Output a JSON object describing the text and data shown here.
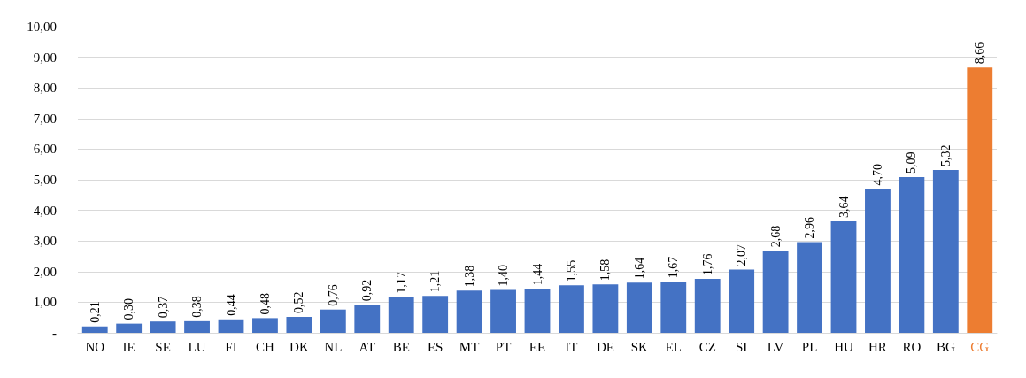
{
  "chart_data": {
    "type": "bar",
    "categories": [
      "NO",
      "IE",
      "SE",
      "LU",
      "FI",
      "CH",
      "DK",
      "NL",
      "AT",
      "BE",
      "ES",
      "MT",
      "PT",
      "EE",
      "IT",
      "DE",
      "SK",
      "EL",
      "CZ",
      "SI",
      "LV",
      "PL",
      "HU",
      "HR",
      "RO",
      "BG",
      "CG"
    ],
    "values": [
      0.21,
      0.3,
      0.37,
      0.38,
      0.44,
      0.48,
      0.52,
      0.76,
      0.92,
      1.17,
      1.21,
      1.38,
      1.4,
      1.44,
      1.55,
      1.58,
      1.64,
      1.67,
      1.76,
      2.07,
      2.68,
      2.96,
      3.64,
      4.7,
      5.09,
      5.32,
      8.66
    ],
    "value_labels": [
      "0,21",
      "0,30",
      "0,37",
      "0,38",
      "0,44",
      "0,48",
      "0,52",
      "0,76",
      "0,92",
      "1,17",
      "1,21",
      "1,38",
      "1,40",
      "1,44",
      "1,55",
      "1,58",
      "1,64",
      "1,67",
      "1,76",
      "2,07",
      "2,68",
      "2,96",
      "3,64",
      "4,70",
      "5,09",
      "5,32",
      "8,66"
    ],
    "colors": [
      "#4472c4",
      "#4472c4",
      "#4472c4",
      "#4472c4",
      "#4472c4",
      "#4472c4",
      "#4472c4",
      "#4472c4",
      "#4472c4",
      "#4472c4",
      "#4472c4",
      "#4472c4",
      "#4472c4",
      "#4472c4",
      "#4472c4",
      "#4472c4",
      "#4472c4",
      "#4472c4",
      "#4472c4",
      "#4472c4",
      "#4472c4",
      "#4472c4",
      "#4472c4",
      "#4472c4",
      "#4472c4",
      "#4472c4",
      "#ed7d31"
    ],
    "ylim": [
      0,
      10
    ],
    "yticks": [
      {
        "value": 0,
        "label": "-"
      },
      {
        "value": 1,
        "label": "1,00"
      },
      {
        "value": 2,
        "label": "2,00"
      },
      {
        "value": 3,
        "label": "3,00"
      },
      {
        "value": 4,
        "label": "4,00"
      },
      {
        "value": 5,
        "label": "5,00"
      },
      {
        "value": 6,
        "label": "6,00"
      },
      {
        "value": 7,
        "label": "7,00"
      },
      {
        "value": 8,
        "label": "8,00"
      },
      {
        "value": 9,
        "label": "9,00"
      },
      {
        "value": 10,
        "label": "10,00"
      }
    ],
    "grid": "y"
  }
}
